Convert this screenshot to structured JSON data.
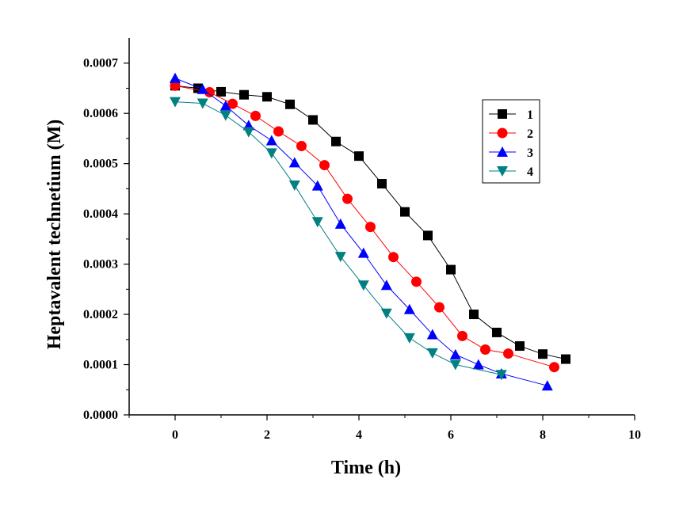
{
  "chart_data": {
    "type": "line",
    "title": "",
    "xlabel": "Time (h)",
    "ylabel": "Heptavalent technetium (M)",
    "xlim": [
      -1,
      10
    ],
    "ylim": [
      0,
      0.00075
    ],
    "x_ticks": [
      "0",
      "2",
      "4",
      "6",
      "8",
      "10"
    ],
    "y_ticks": [
      "0.0000",
      "0.0001",
      "0.0002",
      "0.0003",
      "0.0004",
      "0.0005",
      "0.0006",
      "0.0007"
    ],
    "grid": false,
    "legend_position": "top-right",
    "series": [
      {
        "name": "1",
        "color": "#000000",
        "marker": "square",
        "x": [
          0,
          0.5,
          1.0,
          1.5,
          2.0,
          2.5,
          3.0,
          3.5,
          4.0,
          4.5,
          5.0,
          5.5,
          6.0,
          6.5,
          7.0,
          7.5,
          8.0,
          8.5
        ],
        "y": [
          0.000655,
          0.00065,
          0.000643,
          0.000637,
          0.000633,
          0.000618,
          0.000587,
          0.000544,
          0.000515,
          0.00046,
          0.000404,
          0.000357,
          0.000289,
          0.0002,
          0.000164,
          0.000137,
          0.000121,
          0.000111
        ]
      },
      {
        "name": "2",
        "color": "#ff0000",
        "marker": "circle",
        "x": [
          0,
          0.75,
          1.25,
          1.75,
          2.25,
          2.75,
          3.25,
          3.75,
          4.25,
          4.75,
          5.25,
          5.75,
          6.25,
          6.75,
          7.25,
          8.25
        ],
        "y": [
          0.000655,
          0.000642,
          0.000619,
          0.000595,
          0.000564,
          0.000535,
          0.000497,
          0.00043,
          0.000374,
          0.000314,
          0.000265,
          0.000214,
          0.000157,
          0.00013,
          0.000122,
          9.5e-05
        ]
      },
      {
        "name": "3",
        "color": "#0000ff",
        "marker": "triangle-up",
        "x": [
          0,
          0.6,
          1.1,
          1.6,
          2.1,
          2.6,
          3.1,
          3.6,
          4.1,
          4.6,
          5.1,
          5.6,
          6.1,
          6.6,
          7.1,
          8.1
        ],
        "y": [
          0.00067,
          0.000648,
          0.000615,
          0.000576,
          0.000546,
          0.000502,
          0.000456,
          0.00038,
          0.000322,
          0.000258,
          0.00021,
          0.00016,
          0.00012,
          0.0001,
          8.2e-05,
          5.8e-05
        ]
      },
      {
        "name": "4",
        "color": "#008080",
        "marker": "triangle-down",
        "x": [
          0,
          0.6,
          1.1,
          1.6,
          2.1,
          2.6,
          3.1,
          3.6,
          4.1,
          4.6,
          5.1,
          5.6,
          6.1,
          7.1
        ],
        "y": [
          0.000623,
          0.00062,
          0.000596,
          0.000563,
          0.000521,
          0.000457,
          0.000384,
          0.000315,
          0.000258,
          0.000202,
          0.000153,
          0.000123,
          0.0001,
          8e-05
        ]
      }
    ]
  }
}
